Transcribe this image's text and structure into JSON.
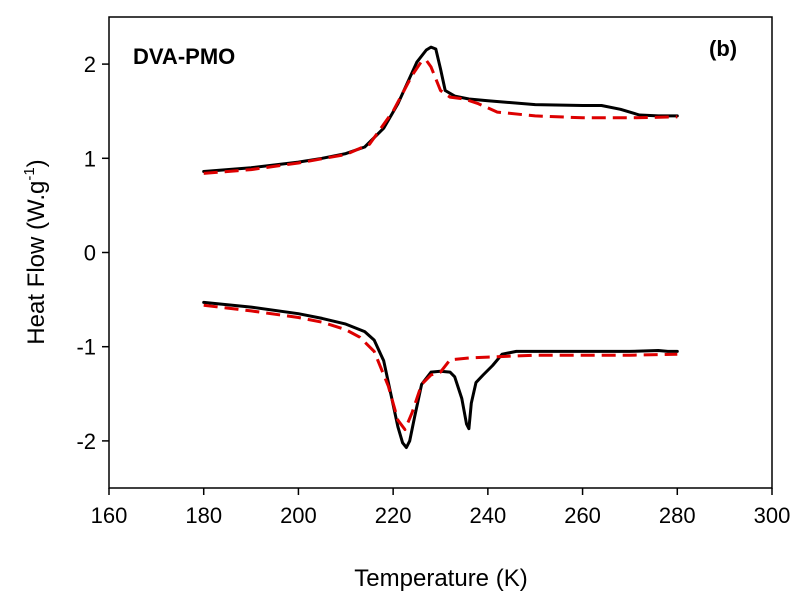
{
  "chart_data": {
    "type": "line",
    "title": "",
    "xlabel": "Temperature (K)",
    "ylabel_main": "Heat Flow (W.g",
    "ylabel_sup": "-1",
    "ylabel_close": ")",
    "xlim": [
      160,
      300
    ],
    "ylim": [
      -2.5,
      2.5
    ],
    "x_ticks": [
      160,
      180,
      200,
      220,
      240,
      260,
      280,
      300
    ],
    "y_ticks": [
      -2,
      -1,
      0,
      1,
      2
    ],
    "x_tick_labels": [
      "160",
      "180",
      "200",
      "220",
      "240",
      "260",
      "280",
      "300"
    ],
    "y_tick_labels": [
      "-2",
      "-1",
      "0",
      "1",
      "2"
    ],
    "grid": false,
    "annotations": [
      {
        "text": "DVA-PMO",
        "position": "top-left",
        "bold": true
      },
      {
        "text": "(b)",
        "position": "top-right",
        "bold": true
      }
    ],
    "series": [
      {
        "color": "#000000",
        "style": "solid",
        "x": [
          180,
          190,
          200,
          205,
          210,
          214,
          218,
          221,
          223,
          225,
          227,
          228,
          229,
          230,
          231,
          233,
          236,
          240,
          250,
          260,
          264,
          268,
          272,
          276,
          280
        ],
        "y": [
          0.86,
          0.9,
          0.96,
          1.0,
          1.05,
          1.12,
          1.32,
          1.58,
          1.8,
          2.02,
          2.15,
          2.18,
          2.16,
          1.95,
          1.72,
          1.66,
          1.63,
          1.61,
          1.57,
          1.56,
          1.56,
          1.52,
          1.46,
          1.45,
          1.45
        ]
      },
      {
        "color": "#dd0000",
        "style": "dashed",
        "x": [
          180,
          190,
          200,
          210,
          215,
          220,
          224,
          226,
          227,
          228,
          230,
          232,
          235,
          238,
          242,
          250,
          260,
          270,
          280
        ],
        "y": [
          0.84,
          0.88,
          0.95,
          1.04,
          1.15,
          1.5,
          1.88,
          2.03,
          2.04,
          1.97,
          1.72,
          1.65,
          1.63,
          1.58,
          1.49,
          1.45,
          1.43,
          1.43,
          1.44
        ]
      },
      {
        "color": "#000000",
        "style": "solid",
        "x": [
          180,
          190,
          200,
          205,
          210,
          214,
          216,
          218,
          219.5,
          221,
          222,
          222.8,
          223.5,
          224.5,
          226,
          228,
          230,
          232,
          233,
          234.5,
          235.5,
          236,
          236.5,
          237.5,
          239,
          241,
          243,
          246,
          250,
          260,
          270,
          276,
          278,
          280
        ],
        "y": [
          -0.53,
          -0.58,
          -0.65,
          -0.7,
          -0.76,
          -0.84,
          -0.93,
          -1.15,
          -1.5,
          -1.85,
          -2.02,
          -2.07,
          -2.0,
          -1.75,
          -1.4,
          -1.27,
          -1.26,
          -1.27,
          -1.32,
          -1.55,
          -1.82,
          -1.87,
          -1.6,
          -1.38,
          -1.3,
          -1.2,
          -1.08,
          -1.05,
          -1.05,
          -1.05,
          -1.05,
          -1.04,
          -1.05,
          -1.05
        ]
      },
      {
        "color": "#dd0000",
        "style": "dashed",
        "x": [
          180,
          190,
          200,
          205,
          210,
          213,
          216,
          219,
          221,
          222.5,
          224,
          226,
          228,
          230,
          232,
          236,
          240,
          250,
          260,
          270,
          280
        ],
        "y": [
          -0.56,
          -0.62,
          -0.69,
          -0.74,
          -0.82,
          -0.9,
          -1.05,
          -1.42,
          -1.78,
          -1.88,
          -1.7,
          -1.4,
          -1.3,
          -1.27,
          -1.14,
          -1.12,
          -1.11,
          -1.09,
          -1.09,
          -1.09,
          -1.08
        ]
      }
    ]
  }
}
